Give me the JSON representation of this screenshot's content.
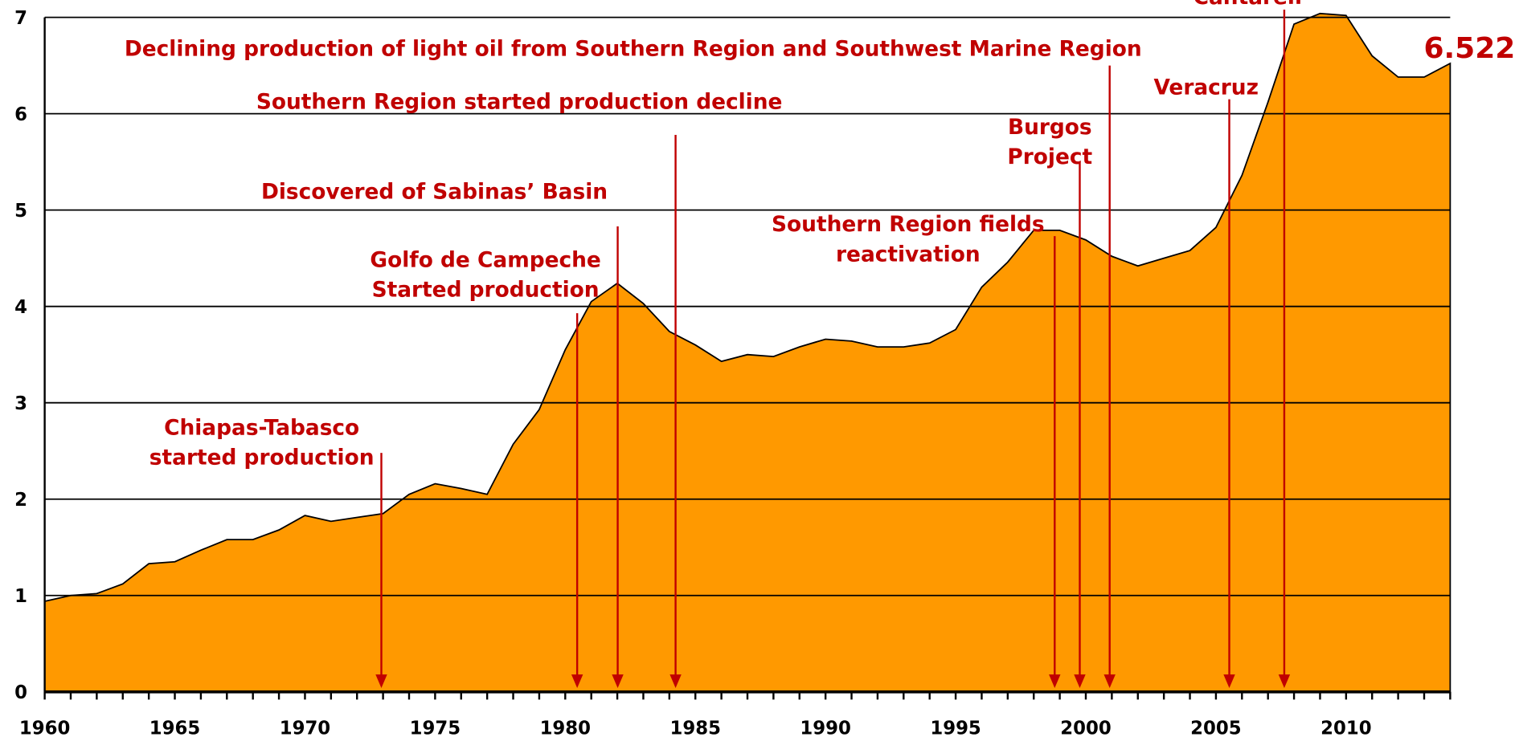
{
  "chart_data": {
    "type": "area",
    "color": "#ff9900",
    "grid": true,
    "x": [
      1960,
      1961,
      1962,
      1963,
      1964,
      1965,
      1966,
      1967,
      1968,
      1969,
      1970,
      1971,
      1972,
      1973,
      1974,
      1975,
      1976,
      1977,
      1978,
      1979,
      1980,
      1981,
      1982,
      1983,
      1984,
      1985,
      1986,
      1987,
      1988,
      1989,
      1990,
      1991,
      1992,
      1993,
      1994,
      1995,
      1996,
      1997,
      1998,
      1999,
      2000,
      2001,
      2002,
      2003,
      2004,
      2005,
      2006,
      2007,
      2008,
      2009,
      2010,
      2011,
      2012,
      2013,
      2014
    ],
    "values": [
      0.94,
      1.0,
      1.02,
      1.12,
      1.33,
      1.35,
      1.47,
      1.58,
      1.58,
      1.68,
      1.83,
      1.77,
      1.81,
      1.85,
      2.05,
      2.16,
      2.11,
      2.05,
      2.57,
      2.93,
      3.55,
      4.05,
      4.24,
      4.03,
      3.74,
      3.6,
      3.43,
      3.5,
      3.48,
      3.58,
      3.66,
      3.64,
      3.58,
      3.58,
      3.62,
      3.76,
      4.2,
      4.46,
      4.79,
      4.79,
      4.69,
      4.52,
      4.42,
      4.5,
      4.58,
      4.82,
      5.36,
      6.12,
      6.93,
      7.04,
      7.02,
      6.6,
      6.38,
      6.38,
      6.522
    ],
    "xlim": [
      1960,
      2014
    ],
    "xticks": [
      1960,
      1965,
      1970,
      1975,
      1980,
      1985,
      1990,
      1995,
      2000,
      2005,
      2010
    ],
    "ylim": [
      0,
      7
    ],
    "yticks": [
      0,
      1,
      2,
      3,
      4,
      5,
      6,
      7
    ],
    "annotations": [
      {
        "lines": [
          "Declining production of light oil from Southern Region and Southwest Marine Region"
        ]
      },
      {
        "lines": [
          "Southern Region started production decline"
        ]
      },
      {
        "lines": [
          "Discovered of Sabinas’ Basin"
        ]
      },
      {
        "lines": [
          "Golfo de Campeche",
          "Started production"
        ]
      },
      {
        "lines": [
          "Chiapas-Tabasco",
          "started production"
        ]
      },
      {
        "lines": [
          "Southern Region fields",
          "reactivation"
        ]
      },
      {
        "lines": [
          "Burgos",
          "Project"
        ]
      },
      {
        "lines": [
          "Veracruz"
        ]
      },
      {
        "lines": [
          "Cantarell"
        ]
      }
    ]
  }
}
